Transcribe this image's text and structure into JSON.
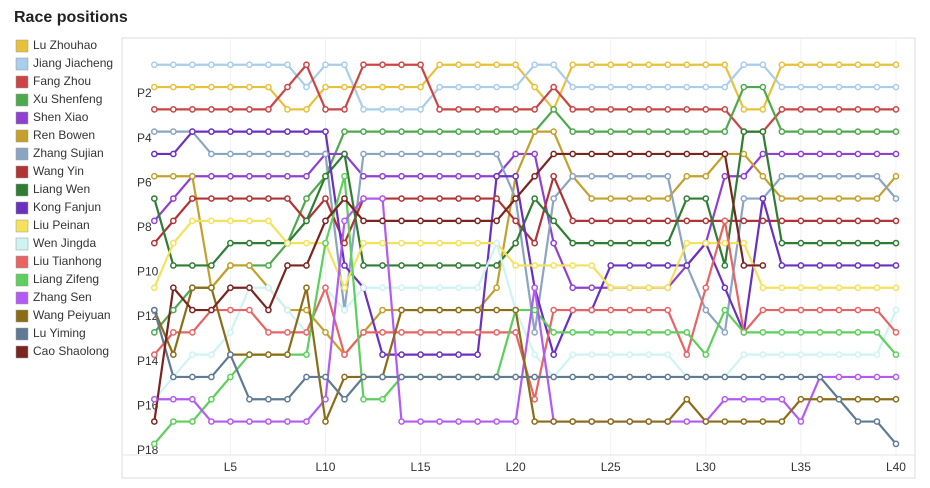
{
  "chart_data": {
    "type": "line",
    "title": "Race positions",
    "x": [
      1,
      2,
      3,
      4,
      5,
      6,
      7,
      8,
      9,
      10,
      11,
      12,
      13,
      14,
      15,
      16,
      17,
      18,
      19,
      20,
      21,
      22,
      23,
      24,
      25,
      26,
      27,
      28,
      29,
      30,
      31,
      32,
      33,
      34,
      35,
      36,
      37,
      38,
      39,
      40
    ],
    "xlim": [
      -0.7,
      41
    ],
    "xticks": [
      {
        "value": 5,
        "label": "L5"
      },
      {
        "value": 10,
        "label": "L10"
      },
      {
        "value": 15,
        "label": "L15"
      },
      {
        "value": 20,
        "label": "L20"
      },
      {
        "value": 25,
        "label": "L25"
      },
      {
        "value": 30,
        "label": "L30"
      },
      {
        "value": 35,
        "label": "L35"
      },
      {
        "value": 40,
        "label": "L40"
      }
    ],
    "ylim": [
      18.5,
      -0.2
    ],
    "yticks": [
      {
        "value": 2,
        "label": "P2"
      },
      {
        "value": 4,
        "label": "P4"
      },
      {
        "value": 6,
        "label": "P6"
      },
      {
        "value": 8,
        "label": "P8"
      },
      {
        "value": 10,
        "label": "P10"
      },
      {
        "value": 12,
        "label": "P12"
      },
      {
        "value": 14,
        "label": "P14"
      },
      {
        "value": 16,
        "label": "P16"
      },
      {
        "value": 18,
        "label": "P18"
      }
    ],
    "grid": true,
    "legend": "left",
    "series": [
      {
        "name": "Lu Zhouhao",
        "color": "#e8c13c",
        "values": [
          2,
          2,
          2,
          2,
          2,
          2,
          2,
          3,
          3,
          2,
          2,
          2,
          2,
          2,
          2,
          1,
          1,
          1,
          1,
          1,
          2,
          3,
          1,
          1,
          1,
          1,
          1,
          1,
          1,
          1,
          1,
          3,
          3,
          1,
          1,
          1,
          1,
          1,
          1,
          1
        ]
      },
      {
        "name": "Jiang Jiacheng",
        "color": "#a9cdea",
        "values": [
          1,
          1,
          1,
          1,
          1,
          1,
          1,
          1,
          2,
          1,
          1,
          3,
          3,
          3,
          3,
          2,
          2,
          2,
          2,
          2,
          1,
          1,
          2,
          2,
          2,
          2,
          2,
          2,
          2,
          2,
          2,
          1,
          1,
          2,
          2,
          2,
          2,
          2,
          2,
          2
        ]
      },
      {
        "name": "Fang Zhou",
        "color": "#cc4444",
        "values": [
          3,
          3,
          3,
          3,
          3,
          3,
          3,
          2,
          1,
          3,
          3,
          1,
          1,
          1,
          1,
          3,
          3,
          3,
          3,
          3,
          3,
          2,
          3,
          3,
          3,
          3,
          3,
          3,
          3,
          3,
          3,
          4,
          4,
          3,
          3,
          3,
          3,
          3,
          3,
          3
        ]
      },
      {
        "name": "Xu Shenfeng",
        "color": "#4ea94e",
        "values": [
          13,
          12,
          11,
          11,
          10,
          10,
          10,
          9,
          7,
          6,
          4,
          4,
          4,
          4,
          4,
          4,
          4,
          4,
          4,
          4,
          4,
          3,
          4,
          4,
          4,
          4,
          4,
          4,
          4,
          4,
          4,
          2,
          2,
          4,
          4,
          4,
          4,
          4,
          4,
          4
        ]
      },
      {
        "name": "Shen Xiao",
        "color": "#9040d0",
        "values": [
          8,
          7,
          6,
          6,
          6,
          6,
          6,
          6,
          6,
          5,
          5,
          6,
          6,
          6,
          6,
          6,
          6,
          6,
          6,
          5,
          5,
          9,
          11,
          11,
          11,
          11,
          11,
          11,
          10,
          9,
          6,
          6,
          5,
          5,
          5,
          5,
          5,
          5,
          5,
          5
        ]
      },
      {
        "name": "Ren Bowen",
        "color": "#c4a02c",
        "values": [
          6,
          6,
          6,
          11,
          10,
          10,
          11,
          12,
          12,
          13,
          14,
          13,
          12,
          12,
          12,
          12,
          12,
          12,
          11,
          6,
          4,
          4,
          6,
          7,
          7,
          7,
          7,
          7,
          6,
          6,
          5,
          5,
          6,
          7,
          7,
          7,
          7,
          7,
          7,
          6
        ]
      },
      {
        "name": "Zhang Sujian",
        "color": "#8aa5c2",
        "values": [
          4,
          4,
          4,
          5,
          5,
          5,
          5,
          5,
          5,
          5,
          12,
          5,
          5,
          5,
          5,
          5,
          5,
          5,
          5,
          7,
          13,
          7,
          6,
          6,
          6,
          6,
          6,
          6,
          10,
          12,
          13,
          7,
          7,
          6,
          6,
          6,
          6,
          6,
          6,
          7
        ]
      },
      {
        "name": "Wang Yin",
        "color": "#b03434",
        "values": [
          9,
          8,
          7,
          7,
          7,
          7,
          7,
          7,
          8,
          7,
          9,
          7,
          7,
          7,
          7,
          7,
          7,
          7,
          7,
          8,
          9,
          6,
          8,
          8,
          8,
          8,
          8,
          8,
          8,
          8,
          8,
          8,
          8,
          8,
          8,
          8,
          8,
          8,
          8,
          8
        ]
      },
      {
        "name": "Liang Wen",
        "color": "#2f7d32",
        "values": [
          7,
          10,
          10,
          10,
          9,
          9,
          9,
          9,
          8,
          6,
          5,
          10,
          10,
          10,
          10,
          10,
          10,
          10,
          10,
          9,
          7,
          8,
          9,
          9,
          9,
          9,
          9,
          9,
          7,
          7,
          10,
          4,
          4,
          9,
          9,
          9,
          9,
          9,
          9,
          9
        ]
      },
      {
        "name": "Kong Fanjun",
        "color": "#6a30c0",
        "values": [
          5,
          5,
          4,
          4,
          4,
          4,
          4,
          4,
          4,
          4,
          10,
          11,
          14,
          14,
          14,
          14,
          14,
          14,
          6,
          6,
          11,
          14,
          12,
          12,
          10,
          10,
          10,
          10,
          10,
          9,
          11,
          13,
          7,
          10,
          10,
          10,
          10,
          10,
          10,
          10
        ]
      },
      {
        "name": "Liu Peinan",
        "color": "#f5e15a",
        "values": [
          11,
          9,
          8,
          8,
          8,
          8,
          8,
          9,
          9,
          9,
          11,
          9,
          9,
          9,
          9,
          9,
          9,
          9,
          9,
          10,
          10,
          10,
          10,
          10,
          11,
          11,
          11,
          11,
          9,
          9,
          9,
          9,
          11,
          11,
          11,
          11,
          11,
          11,
          11,
          11
        ]
      },
      {
        "name": "Wen Jingda",
        "color": "#cdf3f3",
        "values": [
          16,
          15,
          14,
          14,
          13,
          11,
          11,
          12,
          13,
          11,
          12,
          11,
          11,
          11,
          11,
          11,
          11,
          11,
          9,
          12,
          14,
          15,
          14,
          14,
          14,
          14,
          14,
          14,
          15,
          15,
          15,
          14,
          14,
          14,
          14,
          14,
          14,
          14,
          14,
          12
        ]
      },
      {
        "name": "Liu Tianhong",
        "color": "#e86464",
        "values": [
          14,
          13,
          13,
          12,
          12,
          12,
          13,
          13,
          13,
          11,
          14,
          13,
          13,
          13,
          13,
          13,
          13,
          13,
          13,
          13,
          16,
          12,
          12,
          12,
          12,
          12,
          12,
          12,
          14,
          11,
          8,
          13,
          12,
          12,
          12,
          12,
          12,
          12,
          12,
          13
        ]
      },
      {
        "name": "Liang Zifeng",
        "color": "#5ccf5c",
        "values": [
          18,
          17,
          17,
          16,
          15,
          14,
          14,
          14,
          14,
          9,
          6,
          16,
          16,
          15,
          15,
          15,
          15,
          15,
          15,
          12,
          12,
          13,
          13,
          13,
          13,
          13,
          13,
          13,
          13,
          14,
          12,
          13,
          13,
          13,
          13,
          13,
          13,
          13,
          13,
          14
        ]
      },
      {
        "name": "Zhang Sen",
        "color": "#b45af2",
        "values": [
          16,
          16,
          16,
          17,
          17,
          17,
          17,
          17,
          17,
          16,
          8,
          7,
          7,
          17,
          17,
          17,
          17,
          17,
          17,
          17,
          11,
          17,
          17,
          17,
          17,
          17,
          17,
          17,
          17,
          17,
          16,
          16,
          16,
          16,
          17,
          15,
          15,
          15,
          15,
          15
        ]
      },
      {
        "name": "Wang Peiyuan",
        "color": "#8c6c18",
        "values": [
          12,
          14,
          11,
          11,
          14,
          14,
          14,
          14,
          11,
          17,
          15,
          15,
          15,
          12,
          12,
          12,
          12,
          12,
          12,
          12,
          17,
          17,
          17,
          17,
          17,
          17,
          17,
          17,
          16,
          17,
          17,
          17,
          17,
          17,
          16,
          16,
          16,
          16,
          16,
          16
        ]
      },
      {
        "name": "Lu Yiming",
        "color": "#607a94",
        "values": [
          12,
          15,
          15,
          15,
          14,
          16,
          16,
          16,
          15,
          15,
          16,
          15,
          15,
          15,
          15,
          15,
          15,
          15,
          15,
          15,
          15,
          15,
          15,
          15,
          15,
          15,
          15,
          15,
          15,
          15,
          15,
          15,
          15,
          15,
          15,
          15,
          16,
          17,
          17,
          18
        ]
      },
      {
        "name": "Cao Shaolong",
        "color": "#7a2420",
        "values": [
          17,
          11,
          12,
          12,
          11,
          11,
          12,
          10,
          10,
          8,
          7,
          8,
          8,
          8,
          8,
          8,
          8,
          8,
          8,
          7,
          6,
          5,
          5,
          5,
          5,
          5,
          5,
          5,
          5,
          5,
          5,
          10,
          10,
          null,
          null,
          null,
          null,
          null,
          null,
          null
        ]
      }
    ]
  }
}
